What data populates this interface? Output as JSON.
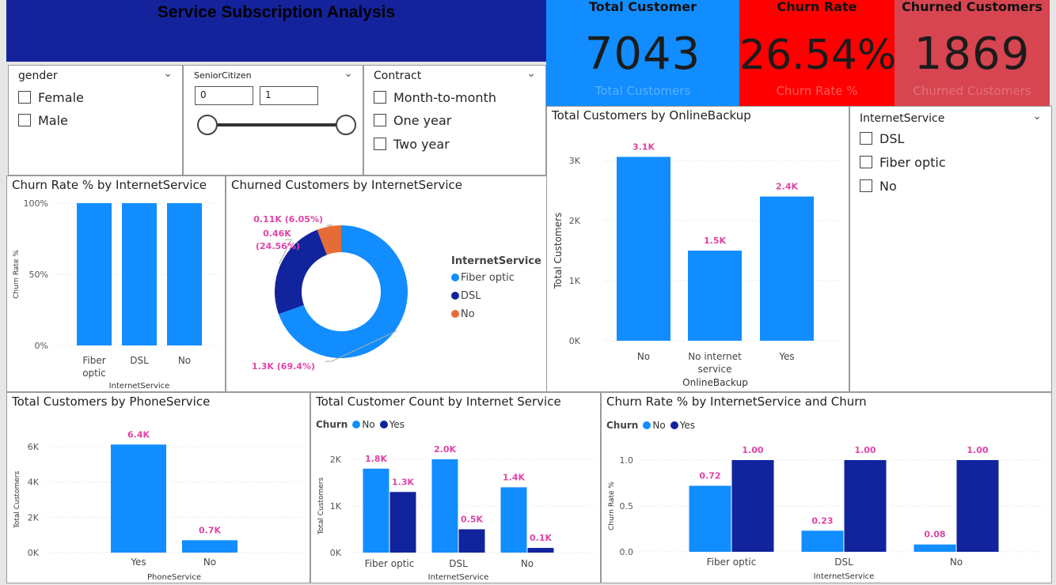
{
  "title": "Service Subscription Analysis",
  "colors": {
    "light": "#118dff",
    "dark": "#12239e",
    "orange": "#e66c37",
    "label": "#e044a7",
    "kpi_blue": "#118dff",
    "kpi_red": "#ff0000",
    "kpi_rose": "#d64550"
  },
  "kpis": [
    {
      "label": "Total Customer",
      "value": "7043",
      "sub": "Total Customers"
    },
    {
      "label": "Churn Rate",
      "value": "26.54%",
      "sub": "Churn Rate %"
    },
    {
      "label": "Churned Customers",
      "value": "1869",
      "sub": "Churned Customers"
    }
  ],
  "slicers": {
    "gender": {
      "title": "gender",
      "options": [
        "Female",
        "Male"
      ]
    },
    "senior": {
      "title": "SeniorCitizen",
      "min": "0",
      "max": "1"
    },
    "contract": {
      "title": "Contract",
      "options": [
        "Month-to-month",
        "One year",
        "Two year"
      ]
    },
    "internet": {
      "title": "InternetService",
      "options": [
        "DSL",
        "Fiber optic",
        "No"
      ]
    }
  },
  "chart_data": [
    {
      "id": "churn_rate_by_internet",
      "type": "bar",
      "title": "Churn Rate % by InternetService",
      "xlabel": "InternetService",
      "ylabel": "Churn Rate %",
      "categories": [
        "Fiber optic",
        "DSL",
        "No"
      ],
      "values": [
        100,
        100,
        100
      ],
      "ylim": [
        0,
        100
      ],
      "yticks": [
        "0%",
        "50%",
        "100%"
      ],
      "grid": true
    },
    {
      "id": "churned_by_internet",
      "type": "pie",
      "title": "Churned Customers by InternetService",
      "legend_title": "InternetService",
      "categories": [
        "Fiber optic",
        "DSL",
        "No"
      ],
      "values": [
        1300,
        460,
        110
      ],
      "percents": [
        69.4,
        24.56,
        6.05
      ],
      "labels": [
        "1.3K (69.4%)",
        "0.46K (24.56%)",
        "0.11K (6.05%)"
      ]
    },
    {
      "id": "customers_by_onlinebackup",
      "type": "bar",
      "title": "Total Customers by OnlineBackup",
      "xlabel": "OnlineBackup",
      "ylabel": "Total Customers",
      "categories": [
        "No",
        "No internet service",
        "Yes"
      ],
      "values": [
        3100,
        1500,
        2400
      ],
      "labels": [
        "3.1K",
        "1.5K",
        "2.4K"
      ],
      "ylim": [
        0,
        3000
      ],
      "yticks": [
        "0K",
        "1K",
        "2K",
        "3K"
      ]
    },
    {
      "id": "customers_by_phoneservice",
      "type": "bar",
      "title": "Total Customers by PhoneService",
      "xlabel": "PhoneService",
      "ylabel": "Total Customers",
      "categories": [
        "Yes",
        "No"
      ],
      "values": [
        6400,
        700
      ],
      "labels": [
        "6.4K",
        "0.7K"
      ],
      "ylim": [
        0,
        6000
      ],
      "yticks": [
        "0K",
        "2K",
        "4K",
        "6K"
      ]
    },
    {
      "id": "count_by_internet_churn",
      "type": "bar",
      "title": "Total Customer Count by Internet Service",
      "xlabel": "InternetService",
      "ylabel": "Total Customers",
      "legend_title": "Churn",
      "categories": [
        "Fiber optic",
        "DSL",
        "No"
      ],
      "series": [
        {
          "name": "No",
          "values": [
            1800,
            2000,
            1400
          ],
          "labels": [
            "1.8K",
            "2.0K",
            "1.4K"
          ]
        },
        {
          "name": "Yes",
          "values": [
            1300,
            500,
            100
          ],
          "labels": [
            "1.3K",
            "0.5K",
            "0.1K"
          ]
        }
      ],
      "ylim": [
        0,
        2000
      ],
      "yticks": [
        "0K",
        "1K",
        "2K"
      ]
    },
    {
      "id": "churn_rate_by_internet_churn",
      "type": "bar",
      "title": "Churn Rate % by InternetService and Churn",
      "xlabel": "InternetService",
      "ylabel": "Churn Rate %",
      "legend_title": "Churn",
      "categories": [
        "Fiber optic",
        "DSL",
        "No"
      ],
      "series": [
        {
          "name": "No",
          "values": [
            0.72,
            0.23,
            0.08
          ],
          "labels": [
            "0.72",
            "0.23",
            "0.08"
          ]
        },
        {
          "name": "Yes",
          "values": [
            1.0,
            1.0,
            1.0
          ],
          "labels": [
            "1.00",
            "1.00",
            "1.00"
          ]
        }
      ],
      "ylim": [
        0,
        1.0
      ],
      "yticks": [
        "0.0",
        "0.5",
        "1.0"
      ]
    }
  ]
}
